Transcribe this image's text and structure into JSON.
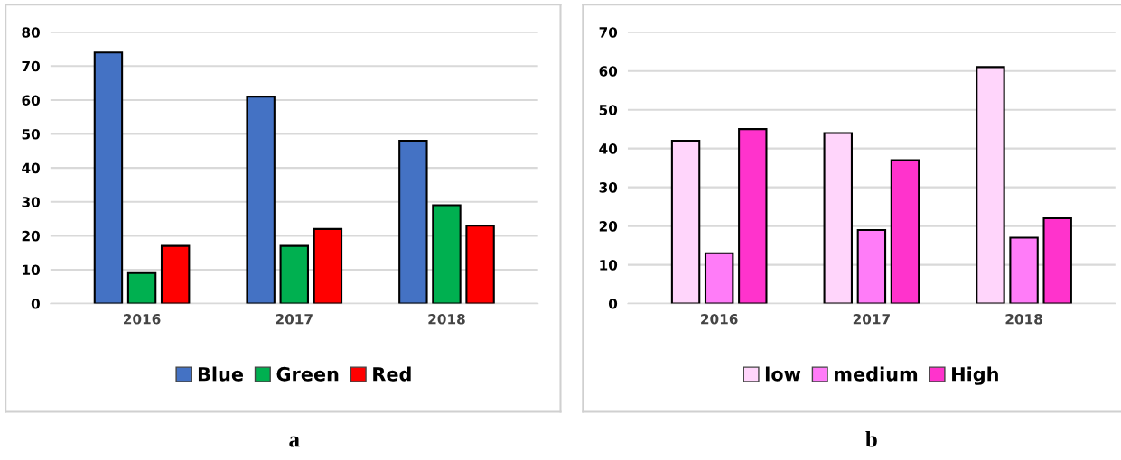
{
  "chart_data": [
    {
      "type": "bar",
      "xlabel": "a",
      "categories": [
        "2016",
        "2017",
        "2018"
      ],
      "series": [
        {
          "name": "Blue",
          "color": "#4472c4",
          "values": [
            74,
            61,
            48
          ]
        },
        {
          "name": "Green",
          "color": "#00b050",
          "values": [
            9,
            17,
            29
          ]
        },
        {
          "name": "Red",
          "color": "#ff0000",
          "values": [
            17,
            22,
            23
          ]
        }
      ],
      "ylim": [
        0,
        80
      ],
      "yticks": [
        0,
        10,
        20,
        30,
        40,
        50,
        60,
        70,
        80
      ],
      "grid": "y",
      "legend": "bottom"
    },
    {
      "type": "bar",
      "xlabel": "b",
      "categories": [
        "2016",
        "2017",
        "2018"
      ],
      "series": [
        {
          "name": "low",
          "color": "#ffd5fb",
          "values": [
            42,
            44,
            61
          ]
        },
        {
          "name": "medium",
          "color": "#ff7cf8",
          "values": [
            13,
            19,
            17
          ]
        },
        {
          "name": "High",
          "color": "#ff33cc",
          "values": [
            45,
            37,
            22
          ]
        }
      ],
      "ylim": [
        0,
        70
      ],
      "yticks": [
        0,
        10,
        20,
        30,
        40,
        50,
        60,
        70
      ],
      "grid": "y",
      "legend": "bottom"
    }
  ]
}
